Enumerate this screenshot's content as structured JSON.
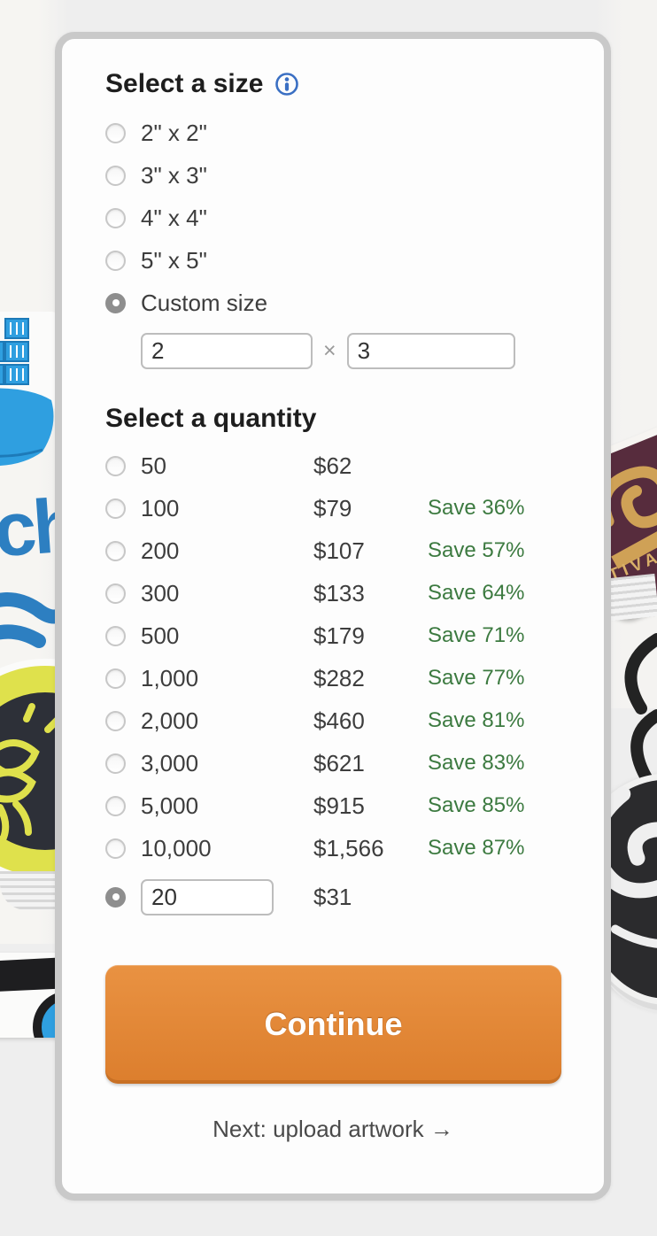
{
  "size_section": {
    "title": "Select a size",
    "options": [
      {
        "label": "2\" x 2\"",
        "selected": false
      },
      {
        "label": "3\" x 3\"",
        "selected": false
      },
      {
        "label": "4\" x 4\"",
        "selected": false
      },
      {
        "label": "5\" x 5\"",
        "selected": false
      },
      {
        "label": "Custom size",
        "selected": true
      }
    ],
    "custom": {
      "width_value": "2",
      "separator": "×",
      "height_value": "3"
    }
  },
  "quantity_section": {
    "title": "Select a quantity",
    "options": [
      {
        "qty": "50",
        "price": "$62",
        "save": ""
      },
      {
        "qty": "100",
        "price": "$79",
        "save": "Save 36%"
      },
      {
        "qty": "200",
        "price": "$107",
        "save": "Save 57%"
      },
      {
        "qty": "300",
        "price": "$133",
        "save": "Save 64%"
      },
      {
        "qty": "500",
        "price": "$179",
        "save": "Save 71%"
      },
      {
        "qty": "1,000",
        "price": "$282",
        "save": "Save 77%"
      },
      {
        "qty": "2,000",
        "price": "$460",
        "save": "Save 81%"
      },
      {
        "qty": "3,000",
        "price": "$621",
        "save": "Save 83%"
      },
      {
        "qty": "5,000",
        "price": "$915",
        "save": "Save 85%"
      },
      {
        "qty": "10,000",
        "price": "$1,566",
        "save": "Save 87%"
      }
    ],
    "custom": {
      "value": "20",
      "price": "$31",
      "selected": true
    }
  },
  "actions": {
    "continue_label": "Continue",
    "next_label": "Next: upload artwork →"
  },
  "background": {
    "festival_text": "TIVAL",
    "wordmark_fragment": "ch"
  },
  "colors": {
    "page_background": "#eeeeee",
    "card_border": "#c9c9c9",
    "accent_orange_top": "#e99242",
    "accent_orange_bottom": "#dc7e2d",
    "save_green": "#3c7a40",
    "info_blue": "#3a6fc3",
    "radio_selected_gray": "#8e8e8e"
  }
}
